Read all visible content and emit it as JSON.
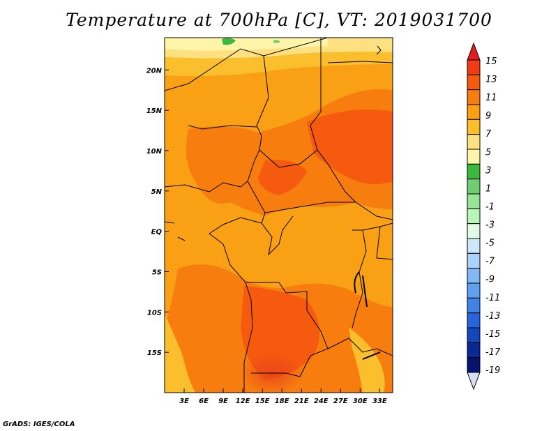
{
  "title": "Temperature at 700hPa [C], VT: 2019031700",
  "credit": "GrADS: IGES/COLA",
  "map": {
    "lon_range": [
      0,
      35
    ],
    "lat_range": [
      -20,
      24
    ],
    "lon_ticks": [
      {
        "value": 3,
        "label": "3E"
      },
      {
        "value": 6,
        "label": "6E"
      },
      {
        "value": 9,
        "label": "9E"
      },
      {
        "value": 12,
        "label": "12E"
      },
      {
        "value": 15,
        "label": "15E"
      },
      {
        "value": 18,
        "label": "18E"
      },
      {
        "value": 21,
        "label": "21E"
      },
      {
        "value": 24,
        "label": "24E"
      },
      {
        "value": 27,
        "label": "27E"
      },
      {
        "value": 30,
        "label": "30E"
      },
      {
        "value": 33,
        "label": "33E"
      }
    ],
    "lat_ticks": [
      {
        "value": 20,
        "label": "20N"
      },
      {
        "value": 15,
        "label": "15N"
      },
      {
        "value": 10,
        "label": "10N"
      },
      {
        "value": 5,
        "label": "5N"
      },
      {
        "value": 0,
        "label": "EQ"
      },
      {
        "value": -5,
        "label": "5S"
      },
      {
        "value": -10,
        "label": "10S"
      },
      {
        "value": -15,
        "label": "15S"
      }
    ]
  },
  "colorbar": {
    "levels": [
      "15",
      "13",
      "11",
      "9",
      "7",
      "5",
      "3",
      "1",
      "-1",
      "-3",
      "-5",
      "-7",
      "-9",
      "-11",
      "-13",
      "-15",
      "-17",
      "-19"
    ],
    "colors_top_to_bottom": [
      "#e11e1e",
      "#f03c14",
      "#f55a0f",
      "#f77d0f",
      "#f9a014",
      "#fbbe2d",
      "#fde080",
      "#fff5aa",
      "#3cb93c",
      "#6ecd6e",
      "#96e696",
      "#b9f5b9",
      "#e1fae6",
      "#cde6fa",
      "#aad2fa",
      "#82b9f5",
      "#5fa0f0",
      "#4182e6",
      "#2864dc",
      "#1446be",
      "#0a2896",
      "#05146e",
      "#dcdcf5"
    ]
  }
}
